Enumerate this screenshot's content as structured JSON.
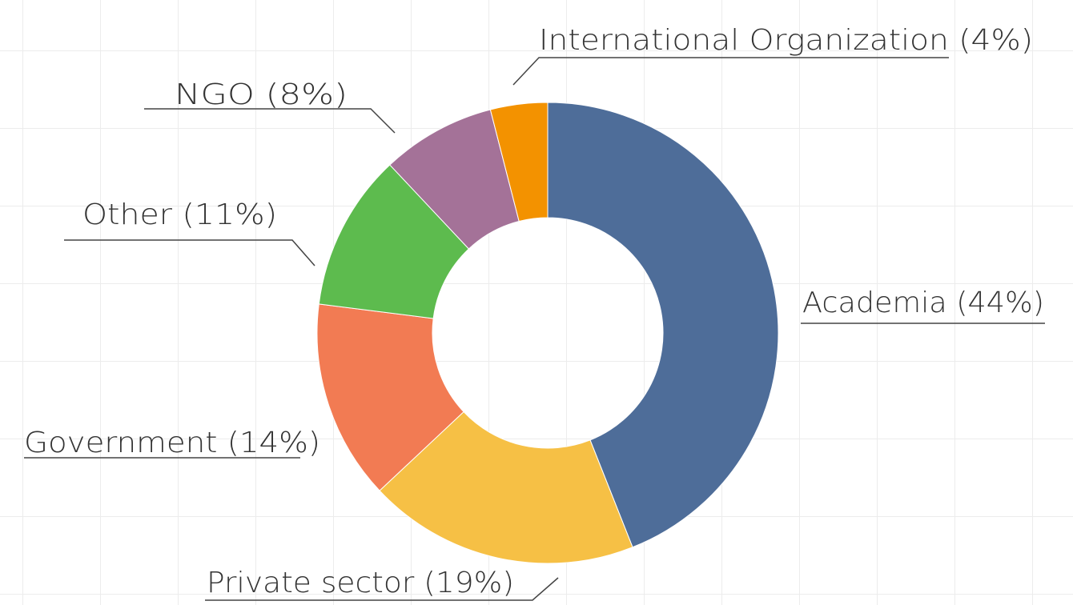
{
  "chart_data": {
    "type": "donut",
    "categories": [
      "Academia",
      "Private sector",
      "Government",
      "Other",
      "NGO",
      "International Organization"
    ],
    "values": [
      44,
      19,
      14,
      11,
      8,
      4
    ],
    "value_labels": [
      "(44%)",
      "(19%)",
      "(14%)",
      "(11%)",
      "(8%)",
      "(4%)"
    ],
    "colors": [
      "#4e6d99",
      "#f6c045",
      "#f27b53",
      "#5dbb4e",
      "#a47298",
      "#f39200"
    ]
  }
}
